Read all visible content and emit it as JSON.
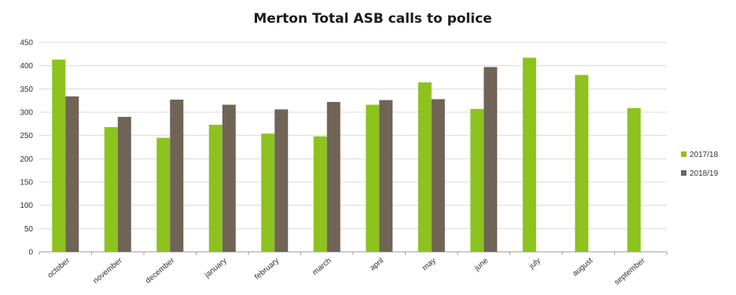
{
  "chart_data": {
    "type": "bar",
    "title": "Merton Total ASB calls to police",
    "xlabel": "",
    "ylabel": "",
    "ylim": [
      0,
      450
    ],
    "yticks": [
      0,
      50,
      100,
      150,
      200,
      250,
      300,
      350,
      400,
      450
    ],
    "grid": true,
    "legend_position": "right",
    "categories": [
      "october",
      "november",
      "december",
      "january",
      "february",
      "march",
      "april",
      "may",
      "june",
      "july",
      "august",
      "september"
    ],
    "series": [
      {
        "name": "2017/18",
        "color": "#8dc21f",
        "values": [
          413,
          268,
          245,
          273,
          254,
          248,
          316,
          364,
          307,
          417,
          380,
          309
        ]
      },
      {
        "name": "2018/19",
        "color": "#6f6456",
        "values": [
          334,
          290,
          327,
          316,
          306,
          322,
          326,
          328,
          397,
          null,
          null,
          null
        ]
      }
    ]
  }
}
